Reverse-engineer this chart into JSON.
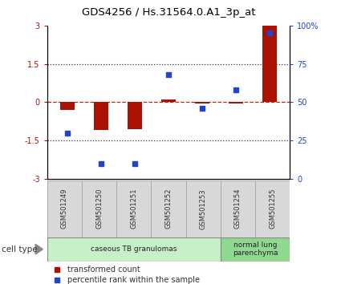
{
  "title": "GDS4256 / Hs.31564.0.A1_3p_at",
  "samples": [
    "GSM501249",
    "GSM501250",
    "GSM501251",
    "GSM501252",
    "GSM501253",
    "GSM501254",
    "GSM501255"
  ],
  "red_values": [
    -0.3,
    -1.1,
    -1.05,
    0.1,
    -0.05,
    -0.05,
    3.0
  ],
  "blue_values_pct": [
    30,
    10,
    10,
    68,
    46,
    58,
    95
  ],
  "ylim_left": [
    -3,
    3
  ],
  "ylim_right": [
    0,
    100
  ],
  "yticks_left": [
    -3,
    -1.5,
    0,
    1.5,
    3
  ],
  "yticks_right": [
    0,
    25,
    50,
    75,
    100
  ],
  "ytick_labels_right": [
    "0",
    "25",
    "50",
    "75",
    "100%"
  ],
  "cell_groups": [
    {
      "label": "caseous TB granulomas",
      "samples": [
        0,
        1,
        2,
        3,
        4
      ],
      "color": "#c8f0c8"
    },
    {
      "label": "normal lung\nparenchyma",
      "samples": [
        5,
        6
      ],
      "color": "#90d890"
    }
  ],
  "red_color": "#aa1100",
  "blue_color": "#2244cc",
  "hline_color": "#cc2200",
  "dotted_color": "#333333",
  "plot_bg": "#ffffff",
  "bar_width": 0.45,
  "legend_red": "transformed count",
  "legend_blue": "percentile rank within the sample",
  "cell_type_label": "cell type"
}
